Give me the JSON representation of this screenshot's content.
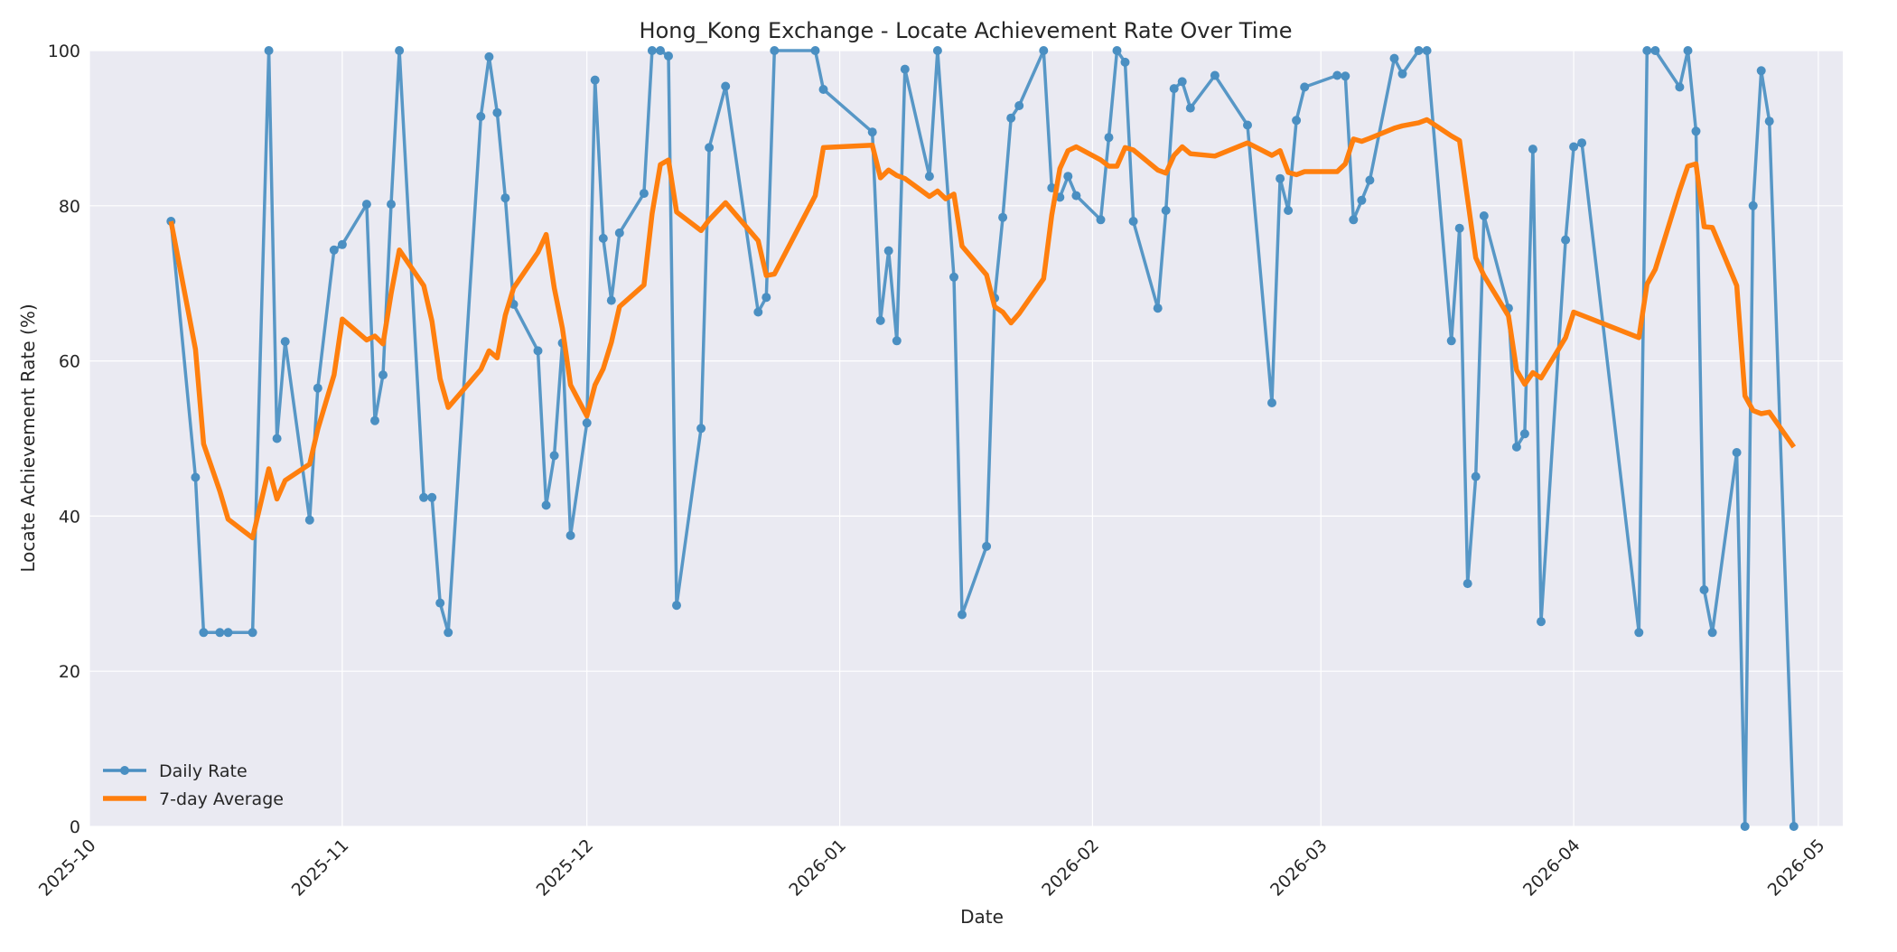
{
  "chart_data": {
    "type": "line",
    "title": "Hong_Kong Exchange - Locate Achievement Rate Over Time",
    "xlabel": "Date",
    "ylabel": "Locate Achievement Rate (%)",
    "xlim": [
      "2025-10-01",
      "2026-05-04"
    ],
    "ylim": [
      0,
      100
    ],
    "x_ticks": [
      "2025-10",
      "2025-11",
      "2025-12",
      "2026-01",
      "2026-02",
      "2026-03",
      "2026-04",
      "2026-05"
    ],
    "x_tick_dates": [
      "2025-10-01",
      "2025-11-01",
      "2025-12-01",
      "2026-01-01",
      "2026-02-01",
      "2026-03-01",
      "2026-04-01",
      "2026-05-01"
    ],
    "y_ticks": [
      0,
      20,
      40,
      60,
      80,
      100
    ],
    "grid": true,
    "legend_position": "lower-left",
    "colors": {
      "daily": "#4a8fc2",
      "average": "#ff7f0e",
      "plot_bg": "#eaeaf2",
      "grid": "#ffffff"
    },
    "series": [
      {
        "name": "Daily Rate",
        "marker": "circle",
        "points": [
          [
            "2025-10-11",
            78
          ],
          [
            "2025-10-14",
            45
          ],
          [
            "2025-10-15",
            25
          ],
          [
            "2025-10-17",
            25
          ],
          [
            "2025-10-18",
            25
          ],
          [
            "2025-10-21",
            25
          ],
          [
            "2025-10-23",
            100
          ],
          [
            "2025-10-24",
            50
          ],
          [
            "2025-10-25",
            62.5
          ],
          [
            "2025-10-28",
            39.5
          ],
          [
            "2025-10-29",
            56.5
          ],
          [
            "2025-10-31",
            74.3
          ],
          [
            "2025-11-01",
            75
          ],
          [
            "2025-11-04",
            80.2
          ],
          [
            "2025-11-05",
            52.3
          ],
          [
            "2025-11-06",
            58.2
          ],
          [
            "2025-11-07",
            80.2
          ],
          [
            "2025-11-08",
            100
          ],
          [
            "2025-11-11",
            42.4
          ],
          [
            "2025-11-12",
            42.4
          ],
          [
            "2025-11-13",
            28.8
          ],
          [
            "2025-11-14",
            25
          ],
          [
            "2025-11-18",
            91.5
          ],
          [
            "2025-11-19",
            99.2
          ],
          [
            "2025-11-20",
            92
          ],
          [
            "2025-11-21",
            81
          ],
          [
            "2025-11-22",
            67.3
          ],
          [
            "2025-11-25",
            61.3
          ],
          [
            "2025-11-26",
            41.4
          ],
          [
            "2025-11-27",
            47.8
          ],
          [
            "2025-11-28",
            62.3
          ],
          [
            "2025-11-29",
            37.5
          ],
          [
            "2025-12-01",
            52
          ],
          [
            "2025-12-02",
            96.2
          ],
          [
            "2025-12-03",
            75.8
          ],
          [
            "2025-12-04",
            67.8
          ],
          [
            "2025-12-05",
            76.5
          ],
          [
            "2025-12-08",
            81.6
          ],
          [
            "2025-12-09",
            100
          ],
          [
            "2025-12-10",
            100
          ],
          [
            "2025-12-11",
            99.3
          ],
          [
            "2025-12-12",
            28.5
          ],
          [
            "2025-12-15",
            51.3
          ],
          [
            "2025-12-16",
            87.5
          ],
          [
            "2025-12-18",
            95.4
          ],
          [
            "2025-12-22",
            66.3
          ],
          [
            "2025-12-23",
            68.2
          ],
          [
            "2025-12-24",
            100
          ],
          [
            "2025-12-29",
            100
          ],
          [
            "2025-12-30",
            95
          ],
          [
            "2026-01-05",
            89.5
          ],
          [
            "2026-01-06",
            65.2
          ],
          [
            "2026-01-07",
            74.2
          ],
          [
            "2026-01-08",
            62.6
          ],
          [
            "2026-01-09",
            97.6
          ],
          [
            "2026-01-12",
            83.8
          ],
          [
            "2026-01-13",
            100
          ],
          [
            "2026-01-15",
            70.8
          ],
          [
            "2026-01-16",
            27.3
          ],
          [
            "2026-01-19",
            36.1
          ],
          [
            "2026-01-20",
            68.1
          ],
          [
            "2026-01-21",
            78.5
          ],
          [
            "2026-01-22",
            91.3
          ],
          [
            "2026-01-23",
            92.9
          ],
          [
            "2026-01-26",
            100
          ],
          [
            "2026-01-27",
            82.3
          ],
          [
            "2026-01-28",
            81.1
          ],
          [
            "2026-01-29",
            83.8
          ],
          [
            "2026-01-30",
            81.3
          ],
          [
            "2026-02-02",
            78.2
          ],
          [
            "2026-02-03",
            88.8
          ],
          [
            "2026-02-04",
            100
          ],
          [
            "2026-02-05",
            98.5
          ],
          [
            "2026-02-06",
            78
          ],
          [
            "2026-02-09",
            66.8
          ],
          [
            "2026-02-10",
            79.4
          ],
          [
            "2026-02-11",
            95.1
          ],
          [
            "2026-02-12",
            96
          ],
          [
            "2026-02-13",
            92.6
          ],
          [
            "2026-02-16",
            96.8
          ],
          [
            "2026-02-20",
            90.4
          ],
          [
            "2026-02-23",
            54.6
          ],
          [
            "2026-02-24",
            83.5
          ],
          [
            "2026-02-25",
            79.4
          ],
          [
            "2026-02-26",
            91
          ],
          [
            "2026-02-27",
            95.3
          ],
          [
            "2026-03-03",
            96.8
          ],
          [
            "2026-03-04",
            96.7
          ],
          [
            "2026-03-05",
            78.2
          ],
          [
            "2026-03-06",
            80.7
          ],
          [
            "2026-03-07",
            83.3
          ],
          [
            "2026-03-10",
            99
          ],
          [
            "2026-03-11",
            97
          ],
          [
            "2026-03-13",
            100
          ],
          [
            "2026-03-14",
            100
          ],
          [
            "2026-03-17",
            62.6
          ],
          [
            "2026-03-18",
            77.1
          ],
          [
            "2026-03-19",
            31.3
          ],
          [
            "2026-03-20",
            45.1
          ],
          [
            "2026-03-21",
            78.7
          ],
          [
            "2026-03-24",
            66.8
          ],
          [
            "2026-03-25",
            48.9
          ],
          [
            "2026-03-26",
            50.6
          ],
          [
            "2026-03-27",
            87.3
          ],
          [
            "2026-03-28",
            26.4
          ],
          [
            "2026-03-31",
            75.6
          ],
          [
            "2026-04-01",
            87.6
          ],
          [
            "2026-04-02",
            88.1
          ],
          [
            "2026-04-09",
            25
          ],
          [
            "2026-04-10",
            100
          ],
          [
            "2026-04-11",
            100
          ],
          [
            "2026-04-14",
            95.3
          ],
          [
            "2026-04-15",
            100
          ],
          [
            "2026-04-16",
            89.6
          ],
          [
            "2026-04-17",
            30.5
          ],
          [
            "2026-04-18",
            25
          ],
          [
            "2026-04-21",
            48.2
          ],
          [
            "2026-04-22",
            0
          ],
          [
            "2026-04-23",
            80
          ],
          [
            "2026-04-24",
            97.4
          ],
          [
            "2026-04-25",
            90.9
          ],
          [
            "2026-04-28",
            0
          ]
        ]
      },
      {
        "name": "7-day Average",
        "marker": "none",
        "points": [
          [
            "2025-10-11",
            78
          ],
          [
            "2025-10-14",
            61.5
          ],
          [
            "2025-10-15",
            49.3
          ],
          [
            "2025-10-17",
            43.2
          ],
          [
            "2025-10-18",
            39.6
          ],
          [
            "2025-10-21",
            37.2
          ],
          [
            "2025-10-23",
            46.1
          ],
          [
            "2025-10-24",
            42.2
          ],
          [
            "2025-10-25",
            44.6
          ],
          [
            "2025-10-28",
            46.7
          ],
          [
            "2025-10-29",
            51.2
          ],
          [
            "2025-10-31",
            58.2
          ],
          [
            "2025-11-01",
            65.4
          ],
          [
            "2025-11-04",
            62.7
          ],
          [
            "2025-11-05",
            63.2
          ],
          [
            "2025-11-06",
            62.2
          ],
          [
            "2025-11-07",
            68.7
          ],
          [
            "2025-11-08",
            74.3
          ],
          [
            "2025-11-11",
            69.7
          ],
          [
            "2025-11-12",
            65.1
          ],
          [
            "2025-11-13",
            57.7
          ],
          [
            "2025-11-14",
            54
          ],
          [
            "2025-11-18",
            58.9
          ],
          [
            "2025-11-19",
            61.3
          ],
          [
            "2025-11-20",
            60.4
          ],
          [
            "2025-11-21",
            65.9
          ],
          [
            "2025-11-22",
            69.4
          ],
          [
            "2025-11-25",
            74
          ],
          [
            "2025-11-26",
            76.3
          ],
          [
            "2025-11-27",
            69.4
          ],
          [
            "2025-11-28",
            64.2
          ],
          [
            "2025-11-29",
            56.9
          ],
          [
            "2025-12-01",
            52.9
          ],
          [
            "2025-12-02",
            56.9
          ],
          [
            "2025-12-03",
            59
          ],
          [
            "2025-12-04",
            62.4
          ],
          [
            "2025-12-05",
            67
          ],
          [
            "2025-12-08",
            69.8
          ],
          [
            "2025-12-09",
            79
          ],
          [
            "2025-12-10",
            85.3
          ],
          [
            "2025-12-11",
            85.9
          ],
          [
            "2025-12-12",
            79.2
          ],
          [
            "2025-12-15",
            76.8
          ],
          [
            "2025-12-16",
            78.2
          ],
          [
            "2025-12-18",
            80.4
          ],
          [
            "2025-12-22",
            75.5
          ],
          [
            "2025-12-23",
            71
          ],
          [
            "2025-12-24",
            71.2
          ],
          [
            "2025-12-29",
            81.3
          ],
          [
            "2025-12-30",
            87.5
          ],
          [
            "2026-01-05",
            87.8
          ],
          [
            "2026-01-06",
            83.6
          ],
          [
            "2026-01-07",
            84.6
          ],
          [
            "2026-01-08",
            83.9
          ],
          [
            "2026-01-09",
            83.5
          ],
          [
            "2026-01-12",
            81.2
          ],
          [
            "2026-01-13",
            81.9
          ],
          [
            "2026-01-14",
            80.9
          ],
          [
            "2026-01-15",
            81.5
          ],
          [
            "2026-01-16",
            74.8
          ],
          [
            "2026-01-19",
            71.1
          ],
          [
            "2026-01-20",
            67
          ],
          [
            "2026-01-21",
            66.3
          ],
          [
            "2026-01-22",
            64.9
          ],
          [
            "2026-01-23",
            66.1
          ],
          [
            "2026-01-26",
            70.6
          ],
          [
            "2026-01-27",
            78.8
          ],
          [
            "2026-01-28",
            84.8
          ],
          [
            "2026-01-29",
            87.1
          ],
          [
            "2026-01-30",
            87.6
          ],
          [
            "2026-02-02",
            85.9
          ],
          [
            "2026-02-03",
            85.1
          ],
          [
            "2026-02-04",
            85.1
          ],
          [
            "2026-02-05",
            87.5
          ],
          [
            "2026-02-06",
            87.2
          ],
          [
            "2026-02-09",
            84.6
          ],
          [
            "2026-02-10",
            84.2
          ],
          [
            "2026-02-11",
            86.5
          ],
          [
            "2026-02-12",
            87.6
          ],
          [
            "2026-02-13",
            86.7
          ],
          [
            "2026-02-16",
            86.4
          ],
          [
            "2026-02-20",
            88.1
          ],
          [
            "2026-02-23",
            86.5
          ],
          [
            "2026-02-24",
            87.1
          ],
          [
            "2026-02-25",
            84.3
          ],
          [
            "2026-02-26",
            84
          ],
          [
            "2026-02-27",
            84.4
          ],
          [
            "2026-03-03",
            84.4
          ],
          [
            "2026-03-04",
            85.4
          ],
          [
            "2026-03-05",
            88.6
          ],
          [
            "2026-03-06",
            88.3
          ],
          [
            "2026-03-07",
            88.7
          ],
          [
            "2026-03-10",
            90
          ],
          [
            "2026-03-11",
            90.3
          ],
          [
            "2026-03-13",
            90.7
          ],
          [
            "2026-03-14",
            91.1
          ],
          [
            "2026-03-17",
            89
          ],
          [
            "2026-03-18",
            88.4
          ],
          [
            "2026-03-19",
            80.8
          ],
          [
            "2026-03-20",
            73.3
          ],
          [
            "2026-03-21",
            71
          ],
          [
            "2026-03-24",
            65.8
          ],
          [
            "2026-03-25",
            58.8
          ],
          [
            "2026-03-26",
            57
          ],
          [
            "2026-03-27",
            58.5
          ],
          [
            "2026-03-28",
            57.8
          ],
          [
            "2026-03-31",
            63
          ],
          [
            "2026-04-01",
            66.3
          ],
          [
            "2026-04-09",
            63
          ],
          [
            "2026-04-10",
            69.9
          ],
          [
            "2026-04-11",
            71.8
          ],
          [
            "2026-04-14",
            82
          ],
          [
            "2026-04-15",
            85.1
          ],
          [
            "2026-04-16",
            85.4
          ],
          [
            "2026-04-17",
            77.3
          ],
          [
            "2026-04-18",
            77.2
          ],
          [
            "2026-04-21",
            69.7
          ],
          [
            "2026-04-22",
            55.5
          ],
          [
            "2026-04-23",
            53.6
          ],
          [
            "2026-04-24",
            53.2
          ],
          [
            "2026-04-25",
            53.4
          ],
          [
            "2026-04-28",
            48.9
          ]
        ]
      }
    ]
  }
}
